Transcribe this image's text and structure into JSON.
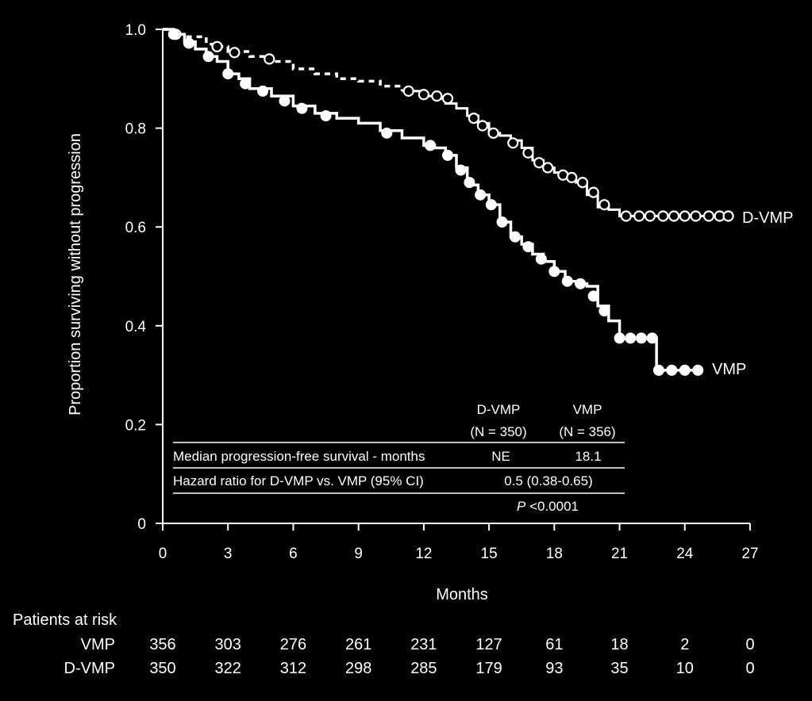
{
  "chart_data": {
    "type": "line",
    "xlabel": "Months",
    "ylabel": "Proportion surviving without progression",
    "xlim": [
      0,
      27
    ],
    "ylim": [
      0,
      1.0
    ],
    "x_ticks": [
      "0",
      "3",
      "6",
      "9",
      "12",
      "15",
      "18",
      "21",
      "24",
      "27"
    ],
    "y_ticks": [
      "0",
      "0.2",
      "0.4",
      "0.6",
      "0.8",
      "1.0"
    ],
    "grid": false,
    "series": [
      {
        "name": "D-VMP",
        "style": "dashed-then-solid, open circle censor marks",
        "color": "#ffffff",
        "points": [
          [
            0,
            1.0
          ],
          [
            0.5,
            0.99
          ],
          [
            1,
            0.985
          ],
          [
            2,
            0.97
          ],
          [
            2.5,
            0.965
          ],
          [
            3,
            0.955
          ],
          [
            4,
            0.945
          ],
          [
            5,
            0.935
          ],
          [
            6,
            0.92
          ],
          [
            7,
            0.91
          ],
          [
            8,
            0.9
          ],
          [
            9,
            0.895
          ],
          [
            10,
            0.885
          ],
          [
            11,
            0.875
          ],
          [
            12,
            0.865
          ],
          [
            12.5,
            0.86
          ],
          [
            13,
            0.85
          ],
          [
            13.5,
            0.84
          ],
          [
            14,
            0.825
          ],
          [
            14.5,
            0.81
          ],
          [
            15,
            0.79
          ],
          [
            15.5,
            0.785
          ],
          [
            16,
            0.775
          ],
          [
            16.5,
            0.76
          ],
          [
            17,
            0.735
          ],
          [
            17.5,
            0.72
          ],
          [
            18,
            0.71
          ],
          [
            18.5,
            0.7
          ],
          [
            19,
            0.69
          ],
          [
            19.5,
            0.665
          ],
          [
            20,
            0.64
          ],
          [
            20.5,
            0.635
          ],
          [
            21,
            0.622
          ],
          [
            22,
            0.622
          ],
          [
            23,
            0.622
          ],
          [
            24,
            0.622
          ],
          [
            25,
            0.622
          ],
          [
            26,
            0.622
          ]
        ],
        "censored": [
          [
            0.6,
            0.99
          ],
          [
            2.5,
            0.965
          ],
          [
            3.3,
            0.953
          ],
          [
            4.9,
            0.94
          ],
          [
            11.3,
            0.875
          ],
          [
            12,
            0.868
          ],
          [
            12.6,
            0.865
          ],
          [
            13.1,
            0.86
          ],
          [
            14.3,
            0.82
          ],
          [
            14.7,
            0.805
          ],
          [
            15.2,
            0.79
          ],
          [
            16.1,
            0.77
          ],
          [
            16.8,
            0.75
          ],
          [
            17.3,
            0.73
          ],
          [
            17.7,
            0.72
          ],
          [
            18.4,
            0.705
          ],
          [
            18.8,
            0.7
          ],
          [
            19.3,
            0.69
          ],
          [
            19.8,
            0.67
          ],
          [
            20.3,
            0.645
          ],
          [
            21.3,
            0.622
          ],
          [
            21.9,
            0.622
          ],
          [
            22.4,
            0.622
          ],
          [
            23.0,
            0.622
          ],
          [
            23.5,
            0.622
          ],
          [
            24.0,
            0.622
          ],
          [
            24.5,
            0.622
          ],
          [
            25.1,
            0.622
          ],
          [
            25.6,
            0.622
          ],
          [
            26.0,
            0.622
          ]
        ]
      },
      {
        "name": "VMP",
        "style": "solid, filled circle censor marks",
        "color": "#ffffff",
        "points": [
          [
            0,
            1.0
          ],
          [
            0.5,
            0.99
          ],
          [
            1,
            0.975
          ],
          [
            1.5,
            0.96
          ],
          [
            2,
            0.945
          ],
          [
            2.5,
            0.935
          ],
          [
            3,
            0.91
          ],
          [
            3.5,
            0.9
          ],
          [
            4,
            0.88
          ],
          [
            5,
            0.865
          ],
          [
            6,
            0.845
          ],
          [
            7,
            0.83
          ],
          [
            8,
            0.82
          ],
          [
            9,
            0.81
          ],
          [
            10,
            0.795
          ],
          [
            11,
            0.78
          ],
          [
            12,
            0.765
          ],
          [
            12.5,
            0.76
          ],
          [
            13,
            0.745
          ],
          [
            13.5,
            0.72
          ],
          [
            14,
            0.685
          ],
          [
            14.5,
            0.665
          ],
          [
            15,
            0.645
          ],
          [
            15.5,
            0.61
          ],
          [
            16,
            0.58
          ],
          [
            16.5,
            0.565
          ],
          [
            17,
            0.545
          ],
          [
            17.5,
            0.53
          ],
          [
            18,
            0.51
          ],
          [
            18.5,
            0.49
          ],
          [
            19,
            0.485
          ],
          [
            19.5,
            0.48
          ],
          [
            20,
            0.44
          ],
          [
            20.5,
            0.41
          ],
          [
            21,
            0.375
          ],
          [
            21.5,
            0.375
          ],
          [
            22,
            0.375
          ],
          [
            22.5,
            0.375
          ],
          [
            22.7,
            0.31
          ],
          [
            23,
            0.31
          ],
          [
            24,
            0.31
          ],
          [
            24.7,
            0.31
          ]
        ],
        "censored": [
          [
            0.5,
            0.99
          ],
          [
            1.2,
            0.972
          ],
          [
            2.1,
            0.945
          ],
          [
            3.0,
            0.91
          ],
          [
            3.8,
            0.89
          ],
          [
            4.6,
            0.875
          ],
          [
            5.6,
            0.855
          ],
          [
            6.4,
            0.84
          ],
          [
            7.5,
            0.825
          ],
          [
            10.3,
            0.79
          ],
          [
            12.3,
            0.765
          ],
          [
            13.1,
            0.745
          ],
          [
            13.7,
            0.715
          ],
          [
            14.1,
            0.69
          ],
          [
            14.6,
            0.665
          ],
          [
            15.1,
            0.645
          ],
          [
            15.6,
            0.61
          ],
          [
            16.2,
            0.58
          ],
          [
            16.8,
            0.56
          ],
          [
            17.4,
            0.535
          ],
          [
            18.0,
            0.51
          ],
          [
            18.6,
            0.49
          ],
          [
            19.2,
            0.485
          ],
          [
            19.8,
            0.46
          ],
          [
            20.3,
            0.43
          ],
          [
            21.0,
            0.375
          ],
          [
            21.5,
            0.375
          ],
          [
            22.0,
            0.375
          ],
          [
            22.5,
            0.375
          ],
          [
            22.8,
            0.31
          ],
          [
            23.4,
            0.31
          ],
          [
            24.0,
            0.31
          ],
          [
            24.6,
            0.31
          ]
        ]
      }
    ],
    "inset_table": {
      "headers": [
        {
          "line1": "D-VMP",
          "line2": "(N = 350)"
        },
        {
          "line1": "VMP",
          "line2": "(N = 356)"
        }
      ],
      "rows": [
        {
          "label": "Median progression-free survival - months",
          "dvmp": "NE",
          "vmp": "18.1"
        },
        {
          "label": "Hazard ratio for D-VMP vs. VMP (95% CI)",
          "combined": "0.5 (0.38-0.65)"
        }
      ],
      "p_italic": "P",
      "p_rest": " <0.0001"
    },
    "risk_table": {
      "title": "Patients at risk",
      "rows": [
        {
          "name": "VMP",
          "values": [
            "356",
            "303",
            "276",
            "261",
            "231",
            "127",
            "61",
            "18",
            "2",
            "0"
          ]
        },
        {
          "name": "D-VMP",
          "values": [
            "350",
            "322",
            "312",
            "298",
            "285",
            "179",
            "93",
            "35",
            "10",
            "0"
          ]
        }
      ]
    }
  }
}
